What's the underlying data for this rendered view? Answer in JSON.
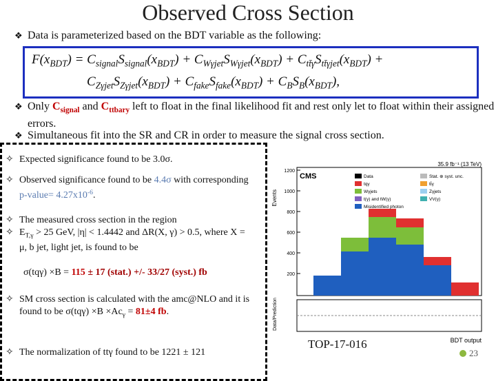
{
  "title": "Observed Cross Section",
  "intro": [
    {
      "text": "Data is parameterized based on the BDT variable as the following:"
    }
  ],
  "formula": [
    [
      {
        "text": "F(x"
      },
      {
        "text": "BDT",
        "s": "sub"
      },
      {
        "text": ") = C"
      },
      {
        "text": "signal",
        "s": "sub"
      },
      {
        "text": "S"
      },
      {
        "text": "signal",
        "s": "sub"
      },
      {
        "text": "(x"
      },
      {
        "text": "BDT",
        "s": "sub"
      },
      {
        "text": ") + C"
      },
      {
        "text": "Wγjet",
        "s": "sub"
      },
      {
        "text": "S"
      },
      {
        "text": "Wγjet",
        "s": "sub"
      },
      {
        "text": "(x"
      },
      {
        "text": "BDT",
        "s": "sub"
      },
      {
        "text": ") + C"
      },
      {
        "text": "tt̄γ",
        "s": "sub"
      },
      {
        "text": "S"
      },
      {
        "text": "tt̄γjet",
        "s": "sub"
      },
      {
        "text": "(x"
      },
      {
        "text": "BDT",
        "s": "sub"
      },
      {
        "text": ") +"
      }
    ],
    [
      {
        "text": "C"
      },
      {
        "text": "Zγjet",
        "s": "sub"
      },
      {
        "text": "S"
      },
      {
        "text": "Zγjet",
        "s": "sub"
      },
      {
        "text": "(x"
      },
      {
        "text": "BDT",
        "s": "sub"
      },
      {
        "text": ") + C"
      },
      {
        "text": "fake",
        "s": "sub"
      },
      {
        "text": "S"
      },
      {
        "text": "fake",
        "s": "sub"
      },
      {
        "text": "(x"
      },
      {
        "text": "BDT",
        "s": "sub"
      },
      {
        "text": ") + C"
      },
      {
        "text": "B",
        "s": "sub"
      },
      {
        "text": "S"
      },
      {
        "text": "B",
        "s": "sub"
      },
      {
        "text": "(x"
      },
      {
        "text": "BDT",
        "s": "sub"
      },
      {
        "text": "),"
      }
    ]
  ],
  "bullets": [
    [
      {
        "text": "Only "
      },
      {
        "text": "C",
        "s": "red"
      },
      {
        "text": "signal",
        "s": "redsub"
      },
      {
        "text": " and "
      },
      {
        "text": "C",
        "s": "red"
      },
      {
        "text": "ttbary",
        "s": "redsub"
      },
      {
        "text": " left to float in the final likelihood fit and rest only let to float within their assigned errors."
      }
    ],
    [
      {
        "text": "Simultaneous fit into the SR and CR in order to measure the signal cross section."
      }
    ]
  ],
  "items": [
    [
      {
        "text": "Expected significance found to be 3.0σ."
      }
    ],
    [
      {
        "text": "Observed significance found to be "
      },
      {
        "text": "4.4σ",
        "s": "blue"
      },
      {
        "text": " with corresponding "
      },
      {
        "text": "p-value= 4.27x10",
        "s": "blue"
      },
      {
        "text": "-6",
        "s": "bluesup"
      },
      {
        "text": "."
      }
    ],
    [
      {
        "text": "The measured cross section in the region"
      }
    ],
    [
      {
        "text": "E"
      },
      {
        "text": "T,γ",
        "s": "sub"
      },
      {
        "text": " > 25 GeV, |η| < 1.4442 and ΔR(X, γ) > 0.5, where X = μ, b jet, light jet, is found to be"
      }
    ],
    [
      {
        "text": "SM cross section is calculated with the amc@NLO and it is found to be σ(tqγ) ×B ×Ac"
      },
      {
        "text": "γ",
        "s": "sub"
      },
      {
        "text": " = "
      },
      {
        "text": "81±4 fb",
        "s": "red"
      },
      {
        "text": "."
      }
    ],
    [
      {
        "text": "The normalization of ttγ found to be 1221 ± 121"
      }
    ]
  ],
  "result": [
    {
      "text": "σ(tqγ) ×B  =  "
    },
    {
      "text": "115",
      "s": "red"
    },
    {
      "text": "  ±  17 (stat.)  +/-    ",
      "s": "dred"
    },
    {
      "text": "33/27 (syst.) fb",
      "s": "dred"
    }
  ],
  "plot": {
    "ylabel": "Events",
    "experiment": "CMS",
    "lumi": "35.9 fb⁻¹ (13 TeV)",
    "ratio_label": "Data/Prediction",
    "xlabel": "BDT output",
    "yticks": [
      "1200",
      "1000",
      "800",
      "600",
      "400",
      "200"
    ],
    "legend": [
      "Data",
      "Stat. ⊕ syst. unc.",
      "tqγ",
      "tt̄γ",
      "Wγjets",
      "Zγjets",
      "t(γ) and tW(γ)",
      "VV(γ)",
      "Misidentified photon"
    ]
  },
  "reference": "TOP-17-016",
  "page_number": "23"
}
